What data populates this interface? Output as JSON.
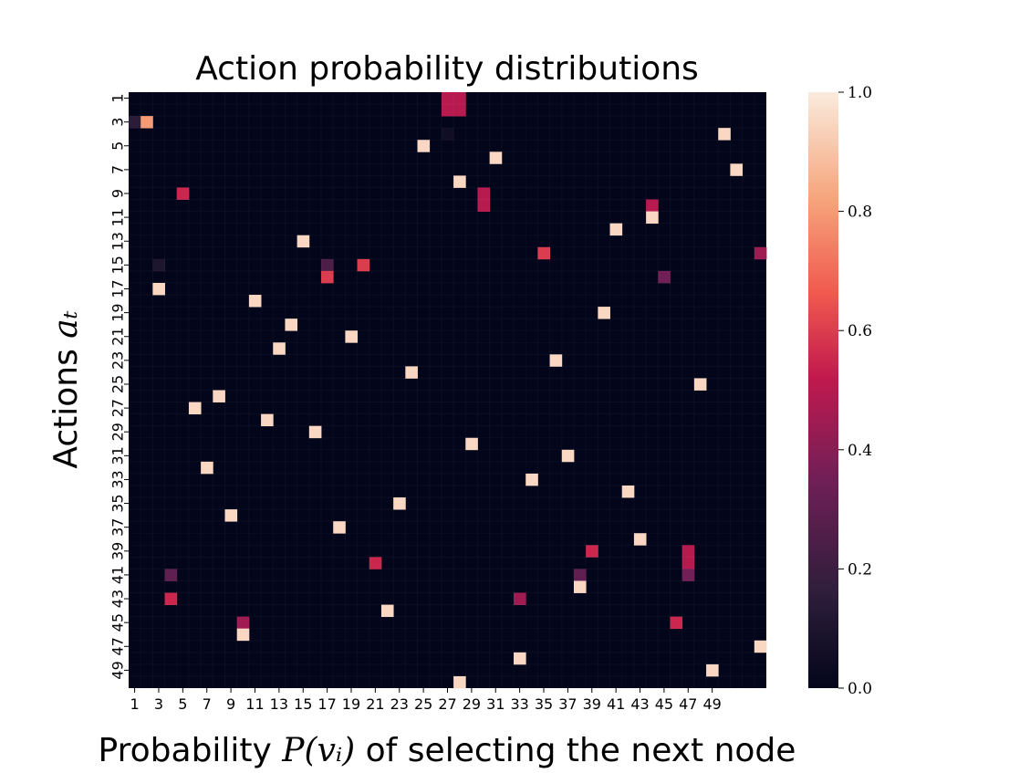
{
  "chart_data": {
    "type": "heatmap",
    "title": "Action probability distributions",
    "xlabel_prefix": "Probability ",
    "xlabel_math": "P(vᵢ)",
    "xlabel_suffix": " of selecting the next node",
    "ylabel_prefix": "Actions ",
    "ylabel_math": "aₜ",
    "n_rows": 50,
    "n_cols": 53,
    "x_tick_labels": [
      "1",
      "3",
      "5",
      "7",
      "9",
      "11",
      "13",
      "15",
      "17",
      "19",
      "21",
      "23",
      "25",
      "27",
      "29",
      "31",
      "33",
      "35",
      "37",
      "39",
      "41",
      "43",
      "45",
      "47",
      "49"
    ],
    "y_tick_labels": [
      "1",
      "3",
      "5",
      "7",
      "9",
      "11",
      "13",
      "15",
      "17",
      "19",
      "21",
      "23",
      "25",
      "27",
      "29",
      "31",
      "33",
      "35",
      "37",
      "39",
      "41",
      "43",
      "45",
      "47",
      "49"
    ],
    "colorbar": {
      "min": 0.0,
      "max": 1.0,
      "ticks": [
        "0.0",
        "0.2",
        "0.4",
        "0.6",
        "0.8",
        "1.0"
      ]
    },
    "colormap": [
      "#03051a",
      "#2e1e3b",
      "#701f57",
      "#c1194e",
      "#f0584e",
      "#f6a47b",
      "#faebdd"
    ],
    "cells": [
      {
        "row": 1,
        "col": 27,
        "value": 0.5
      },
      {
        "row": 1,
        "col": 28,
        "value": 0.5
      },
      {
        "row": 2,
        "col": 27,
        "value": 0.5
      },
      {
        "row": 2,
        "col": 28,
        "value": 0.5
      },
      {
        "row": 3,
        "col": 1,
        "value": 0.15
      },
      {
        "row": 3,
        "col": 2,
        "value": 0.8
      },
      {
        "row": 4,
        "col": 27,
        "value": 0.05
      },
      {
        "row": 4,
        "col": 50,
        "value": 0.95
      },
      {
        "row": 5,
        "col": 25,
        "value": 0.95
      },
      {
        "row": 6,
        "col": 31,
        "value": 0.95
      },
      {
        "row": 7,
        "col": 51,
        "value": 0.95
      },
      {
        "row": 8,
        "col": 28,
        "value": 0.95
      },
      {
        "row": 9,
        "col": 5,
        "value": 0.55
      },
      {
        "row": 9,
        "col": 30,
        "value": 0.5
      },
      {
        "row": 10,
        "col": 30,
        "value": 0.5
      },
      {
        "row": 10,
        "col": 44,
        "value": 0.5
      },
      {
        "row": 11,
        "col": 44,
        "value": 0.95
      },
      {
        "row": 12,
        "col": 41,
        "value": 0.95
      },
      {
        "row": 13,
        "col": 15,
        "value": 0.95
      },
      {
        "row": 14,
        "col": 35,
        "value": 0.6
      },
      {
        "row": 14,
        "col": 53,
        "value": 0.45
      },
      {
        "row": 15,
        "col": 3,
        "value": 0.1
      },
      {
        "row": 15,
        "col": 17,
        "value": 0.25
      },
      {
        "row": 15,
        "col": 20,
        "value": 0.6
      },
      {
        "row": 16,
        "col": 17,
        "value": 0.6
      },
      {
        "row": 16,
        "col": 45,
        "value": 0.35
      },
      {
        "row": 17,
        "col": 3,
        "value": 0.95
      },
      {
        "row": 18,
        "col": 11,
        "value": 0.95
      },
      {
        "row": 19,
        "col": 40,
        "value": 0.95
      },
      {
        "row": 20,
        "col": 14,
        "value": 0.95
      },
      {
        "row": 21,
        "col": 19,
        "value": 0.95
      },
      {
        "row": 22,
        "col": 13,
        "value": 0.95
      },
      {
        "row": 23,
        "col": 36,
        "value": 0.95
      },
      {
        "row": 24,
        "col": 24,
        "value": 0.95
      },
      {
        "row": 25,
        "col": 48,
        "value": 0.95
      },
      {
        "row": 26,
        "col": 8,
        "value": 0.95
      },
      {
        "row": 27,
        "col": 6,
        "value": 0.95
      },
      {
        "row": 28,
        "col": 12,
        "value": 0.95
      },
      {
        "row": 29,
        "col": 16,
        "value": 0.95
      },
      {
        "row": 30,
        "col": 29,
        "value": 0.95
      },
      {
        "row": 31,
        "col": 37,
        "value": 0.95
      },
      {
        "row": 32,
        "col": 7,
        "value": 0.95
      },
      {
        "row": 33,
        "col": 34,
        "value": 0.95
      },
      {
        "row": 34,
        "col": 42,
        "value": 0.95
      },
      {
        "row": 35,
        "col": 23,
        "value": 0.95
      },
      {
        "row": 36,
        "col": 9,
        "value": 0.95
      },
      {
        "row": 37,
        "col": 18,
        "value": 0.95
      },
      {
        "row": 38,
        "col": 43,
        "value": 0.95
      },
      {
        "row": 39,
        "col": 39,
        "value": 0.55
      },
      {
        "row": 39,
        "col": 47,
        "value": 0.5
      },
      {
        "row": 40,
        "col": 21,
        "value": 0.55
      },
      {
        "row": 40,
        "col": 47,
        "value": 0.5
      },
      {
        "row": 41,
        "col": 4,
        "value": 0.3
      },
      {
        "row": 41,
        "col": 38,
        "value": 0.3
      },
      {
        "row": 41,
        "col": 47,
        "value": 0.35
      },
      {
        "row": 42,
        "col": 38,
        "value": 0.95
      },
      {
        "row": 43,
        "col": 4,
        "value": 0.55
      },
      {
        "row": 43,
        "col": 33,
        "value": 0.45
      },
      {
        "row": 44,
        "col": 22,
        "value": 0.95
      },
      {
        "row": 45,
        "col": 10,
        "value": 0.45
      },
      {
        "row": 45,
        "col": 46,
        "value": 0.55
      },
      {
        "row": 46,
        "col": 10,
        "value": 0.95
      },
      {
        "row": 47,
        "col": 53,
        "value": 0.95
      },
      {
        "row": 48,
        "col": 33,
        "value": 0.95
      },
      {
        "row": 49,
        "col": 49,
        "value": 0.95
      },
      {
        "row": 50,
        "col": 28,
        "value": 0.95
      }
    ]
  }
}
